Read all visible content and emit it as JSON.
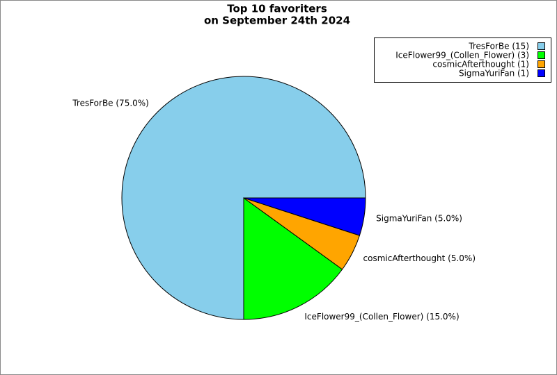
{
  "chart_data": {
    "type": "pie",
    "title": "Top 10 favoriters",
    "subtitle": "on September 24th 2024",
    "categories": [
      "TresForBe (15)",
      "IceFlower99_(Collen_Flower) (3)",
      "cosmicAfterthought (1)",
      "SigmaYuriFan (1)"
    ],
    "values": [
      75,
      15,
      5,
      5
    ],
    "value_labels": [
      "TresForBe (75.0%)",
      "IceFlower99_(Collen_Flower) (15.0%)",
      "cosmicAfterthought (5.0%)",
      "SigmaYuriFan (5.0%)"
    ],
    "colors": [
      "#87ceeb",
      "#00ff00",
      "#ffa500",
      "#0000ff"
    ],
    "legend": "upper right"
  }
}
